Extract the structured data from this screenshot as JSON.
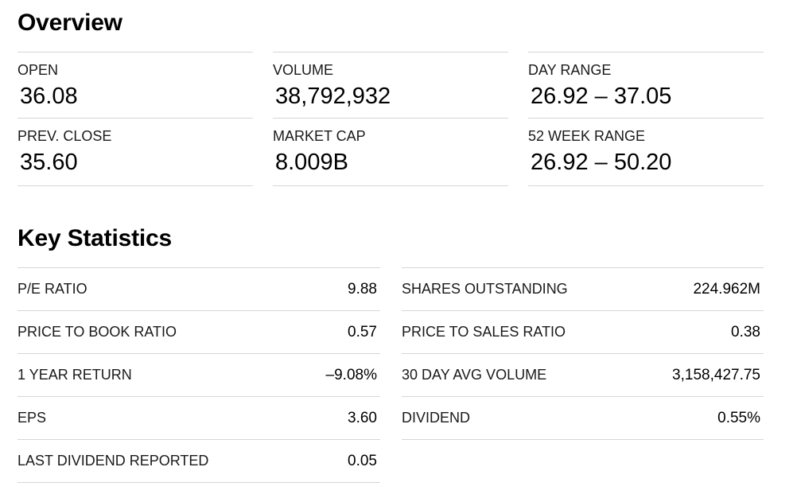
{
  "overview": {
    "title": "Overview",
    "items": [
      {
        "label": "OPEN",
        "value": "36.08"
      },
      {
        "label": "VOLUME",
        "value": "38,792,932"
      },
      {
        "label": "DAY RANGE",
        "value": "26.92 – 37.05"
      },
      {
        "label": "PREV. CLOSE",
        "value": "35.60"
      },
      {
        "label": "MARKET CAP",
        "value": "8.009B"
      },
      {
        "label": "52 WEEK RANGE",
        "value": "26.92 – 50.20"
      }
    ]
  },
  "key_statistics": {
    "title": "Key Statistics",
    "left": [
      {
        "label": "P/E RATIO",
        "value": "9.88"
      },
      {
        "label": "PRICE TO BOOK RATIO",
        "value": "0.57"
      },
      {
        "label": "1 YEAR RETURN",
        "value": "–9.08%"
      },
      {
        "label": "EPS",
        "value": "3.60"
      },
      {
        "label": "LAST DIVIDEND REPORTED",
        "value": "0.05"
      }
    ],
    "right": [
      {
        "label": "SHARES OUTSTANDING",
        "value": "224.962M"
      },
      {
        "label": "PRICE TO SALES RATIO",
        "value": "0.38"
      },
      {
        "label": "30 DAY AVG VOLUME",
        "value": "3,158,427.75"
      },
      {
        "label": "DIVIDEND",
        "value": "0.55%"
      }
    ]
  }
}
